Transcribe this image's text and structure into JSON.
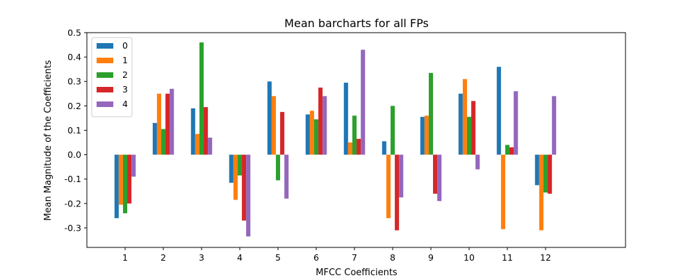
{
  "chart_data": {
    "type": "bar",
    "title": "Mean barcharts for all FPs",
    "xlabel": "MFCC Coefficients",
    "ylabel": "Mean Magnitude of the Coefficients",
    "categories": [
      "1",
      "2",
      "3",
      "4",
      "5",
      "6",
      "7",
      "8",
      "9",
      "10",
      "11",
      "12"
    ],
    "ylim": [
      -0.38,
      0.5
    ],
    "yticks": [
      "-0.3",
      "-0.2",
      "-0.1",
      "0.0",
      "0.1",
      "0.2",
      "0.3",
      "0.4",
      "0.5"
    ],
    "grid": false,
    "legend_position": "top-left",
    "series": [
      {
        "name": "0",
        "color": "#1f77b4",
        "values": [
          -0.26,
          0.13,
          0.19,
          -0.115,
          0.3,
          0.165,
          0.295,
          0.055,
          0.155,
          0.25,
          0.36,
          -0.125
        ]
      },
      {
        "name": "1",
        "color": "#ff7f0e",
        "values": [
          -0.205,
          0.25,
          0.085,
          -0.185,
          0.24,
          0.18,
          0.05,
          -0.26,
          0.16,
          0.31,
          -0.305,
          -0.31
        ]
      },
      {
        "name": "2",
        "color": "#2ca02c",
        "values": [
          -0.24,
          0.105,
          0.46,
          -0.085,
          -0.105,
          0.145,
          0.16,
          0.2,
          0.335,
          0.155,
          0.04,
          -0.155
        ]
      },
      {
        "name": "3",
        "color": "#d62728",
        "values": [
          -0.2,
          0.25,
          0.195,
          -0.27,
          0.175,
          0.275,
          0.065,
          -0.31,
          -0.16,
          0.22,
          0.03,
          -0.16
        ]
      },
      {
        "name": "4",
        "color": "#9467bd",
        "values": [
          -0.09,
          0.27,
          0.07,
          -0.335,
          -0.18,
          0.24,
          0.43,
          -0.175,
          -0.19,
          -0.06,
          0.26,
          0.24
        ]
      }
    ]
  }
}
